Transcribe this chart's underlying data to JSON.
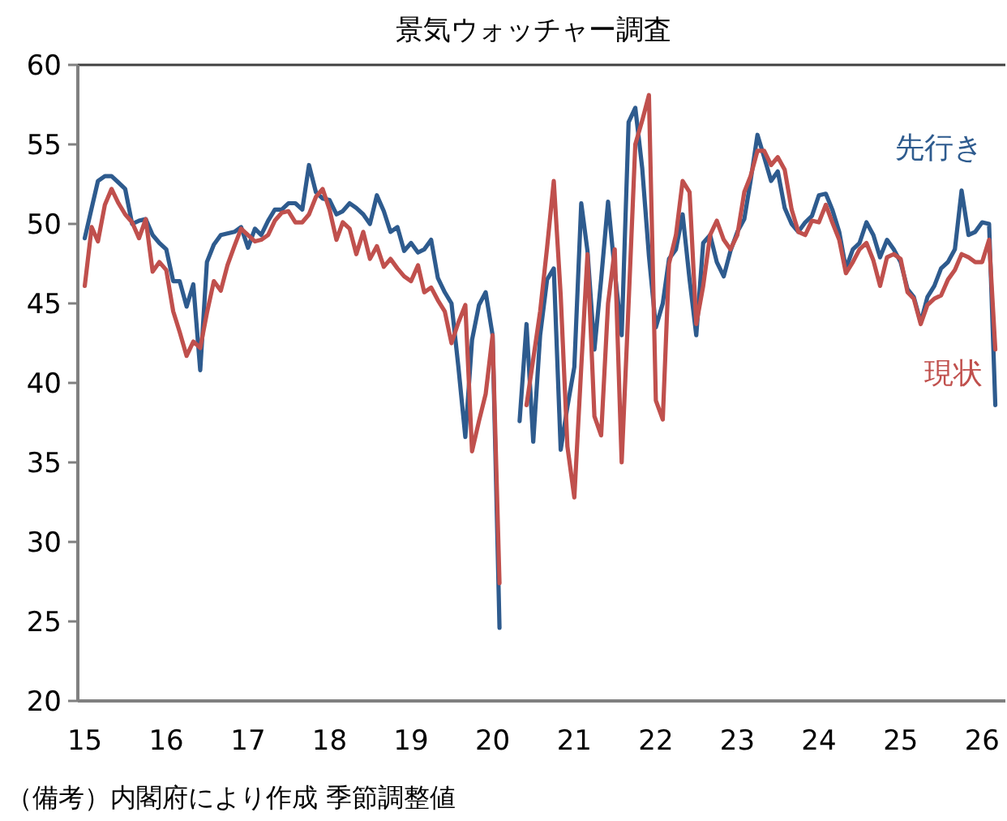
{
  "chart_data": {
    "type": "line",
    "title": "景気ウォッチャー調査",
    "annotations": [
      "（備考）内閣府により作成 季節調整値"
    ],
    "x": [
      "2015-01",
      "2015-02",
      "2015-03",
      "2015-04",
      "2015-05",
      "2015-06",
      "2015-07",
      "2015-08",
      "2015-09",
      "2015-10",
      "2015-11",
      "2015-12",
      "2016-01",
      "2016-02",
      "2016-03",
      "2016-04",
      "2016-05",
      "2016-06",
      "2016-07",
      "2016-08",
      "2016-09",
      "2016-10",
      "2016-11",
      "2016-12",
      "2017-01",
      "2017-02",
      "2017-03",
      "2017-04",
      "2017-05",
      "2017-06",
      "2017-07",
      "2017-08",
      "2017-09",
      "2017-10",
      "2017-11",
      "2017-12",
      "2018-01",
      "2018-02",
      "2018-03",
      "2018-04",
      "2018-05",
      "2018-06",
      "2018-07",
      "2018-08",
      "2018-09",
      "2018-10",
      "2018-11",
      "2018-12",
      "2019-01",
      "2019-02",
      "2019-03",
      "2019-04",
      "2019-05",
      "2019-06",
      "2019-07",
      "2019-08",
      "2019-09",
      "2019-10",
      "2019-11",
      "2019-12",
      "2020-01",
      "2020-02",
      "2020-03",
      "2020-04",
      "2020-05",
      "2020-06",
      "2020-07",
      "2020-08",
      "2020-09",
      "2020-10",
      "2020-11",
      "2020-12",
      "2021-01",
      "2021-02",
      "2021-03",
      "2021-04",
      "2021-05",
      "2021-06",
      "2021-07",
      "2021-08",
      "2021-09",
      "2021-10",
      "2021-11",
      "2021-12",
      "2022-01",
      "2022-02",
      "2022-03",
      "2022-04",
      "2022-05",
      "2022-06",
      "2022-07",
      "2022-08",
      "2022-09",
      "2022-10",
      "2022-11",
      "2022-12",
      "2023-01",
      "2023-02",
      "2023-03",
      "2023-04",
      "2023-05",
      "2023-06",
      "2023-07",
      "2023-08",
      "2023-09",
      "2023-10",
      "2023-11",
      "2023-12",
      "2024-01",
      "2024-02",
      "2024-03",
      "2024-04",
      "2024-05",
      "2024-06",
      "2024-07",
      "2024-08",
      "2024-09",
      "2024-10",
      "2024-11",
      "2024-12",
      "2025-01",
      "2025-02",
      "2025-03",
      "2025-04",
      "2025-05",
      "2025-06",
      "2025-07",
      "2025-08",
      "2025-09",
      "2025-10",
      "2025-11",
      "2025-12",
      "2026-01",
      "2026-02",
      "2026-03"
    ],
    "series": [
      {
        "name": "先行き",
        "color": "#2e5b8e",
        "values": [
          49.1,
          51.0,
          52.7,
          53.0,
          53.0,
          52.6,
          52.2,
          50.0,
          50.2,
          50.3,
          49.3,
          48.8,
          48.4,
          46.4,
          46.4,
          44.8,
          46.2,
          40.8,
          47.6,
          48.7,
          49.3,
          49.4,
          49.5,
          49.8,
          48.5,
          49.7,
          49.3,
          50.2,
          50.9,
          50.9,
          51.3,
          51.3,
          50.9,
          53.7,
          52.0,
          51.6,
          51.5,
          50.6,
          50.8,
          51.3,
          51.0,
          50.6,
          50.0,
          51.8,
          50.8,
          49.5,
          49.8,
          48.3,
          48.8,
          48.2,
          48.4,
          49.0,
          46.6,
          45.7,
          45.0,
          41.0,
          36.6,
          42.7,
          44.9,
          45.7,
          43.0,
          24.6,
          null,
          null,
          37.6,
          43.7,
          36.3,
          43.0,
          46.5,
          47.2,
          35.8,
          38.5,
          41.0,
          51.3,
          48.3,
          42.1,
          46.5,
          51.4,
          47.0,
          43.0,
          56.4,
          57.3,
          53.5,
          48.0,
          43.5,
          45.0,
          47.8,
          48.4,
          50.6,
          46.5,
          43.0,
          48.8,
          49.3,
          47.6,
          46.7,
          48.3,
          49.5,
          50.3,
          52.7,
          55.6,
          54.2,
          52.7,
          53.3,
          51.0,
          50.0,
          49.5,
          50.1,
          50.5,
          51.8,
          51.9,
          50.9,
          49.5,
          47.2,
          48.4,
          48.8,
          50.1,
          49.3,
          47.9,
          49.0,
          48.4,
          47.6,
          45.9,
          45.4,
          43.8,
          45.4,
          46.1,
          47.2,
          47.6,
          48.4,
          52.1,
          49.3,
          49.5,
          50.1,
          50.0,
          38.6
        ]
      },
      {
        "name": "現状",
        "color": "#c0504d",
        "values": [
          46.1,
          49.8,
          48.9,
          51.2,
          52.2,
          51.3,
          50.6,
          50.1,
          49.1,
          50.3,
          47.0,
          47.6,
          47.1,
          44.5,
          43.2,
          41.7,
          42.6,
          42.2,
          44.4,
          46.4,
          45.8,
          47.4,
          48.6,
          49.7,
          49.3,
          48.9,
          49.0,
          49.3,
          50.2,
          50.7,
          50.8,
          50.1,
          50.1,
          50.6,
          51.7,
          52.2,
          50.9,
          49.0,
          50.1,
          49.7,
          48.1,
          49.5,
          47.8,
          48.6,
          47.3,
          47.8,
          47.2,
          46.7,
          46.4,
          47.4,
          45.7,
          46.0,
          45.2,
          44.5,
          42.5,
          43.8,
          44.9,
          35.7,
          37.6,
          39.3,
          43.0,
          27.4,
          null,
          null,
          null,
          38.6,
          41.5,
          44.5,
          48.5,
          52.7,
          45.5,
          36.0,
          32.8,
          41.0,
          48.1,
          37.9,
          36.7,
          45.0,
          48.4,
          35.0,
          45.0,
          55.0,
          56.5,
          58.1,
          38.9,
          37.7,
          47.5,
          49.3,
          52.7,
          52.0,
          43.7,
          46.1,
          49.3,
          50.2,
          49.0,
          48.4,
          49.3,
          52.0,
          53.0,
          54.6,
          54.6,
          53.7,
          54.2,
          53.4,
          50.9,
          49.5,
          49.3,
          50.2,
          50.1,
          51.2,
          50.1,
          49.0,
          46.9,
          47.6,
          48.4,
          48.8,
          47.7,
          46.1,
          47.9,
          48.1,
          47.8,
          45.7,
          45.3,
          43.7,
          44.9,
          45.3,
          45.5,
          46.5,
          47.1,
          48.1,
          47.9,
          47.6,
          47.6,
          49.0,
          42.1
        ]
      }
    ],
    "xlim": [
      "2014-12-01",
      "2026-04-15"
    ],
    "xticks": [
      {
        "value": "2015-01",
        "label": "15"
      },
      {
        "value": "2016-01",
        "label": "16"
      },
      {
        "value": "2017-01",
        "label": "17"
      },
      {
        "value": "2018-01",
        "label": "18"
      },
      {
        "value": "2019-01",
        "label": "19"
      },
      {
        "value": "2020-01",
        "label": "20"
      },
      {
        "value": "2021-01",
        "label": "21"
      },
      {
        "value": "2022-01",
        "label": "22"
      },
      {
        "value": "2023-01",
        "label": "23"
      },
      {
        "value": "2024-01",
        "label": "24"
      },
      {
        "value": "2025-01",
        "label": "25"
      },
      {
        "value": "2026-01",
        "label": "26"
      }
    ],
    "ylim": [
      20,
      60
    ],
    "yticks": [
      20,
      25,
      30,
      35,
      40,
      45,
      50,
      55,
      60
    ],
    "grid": false
  }
}
